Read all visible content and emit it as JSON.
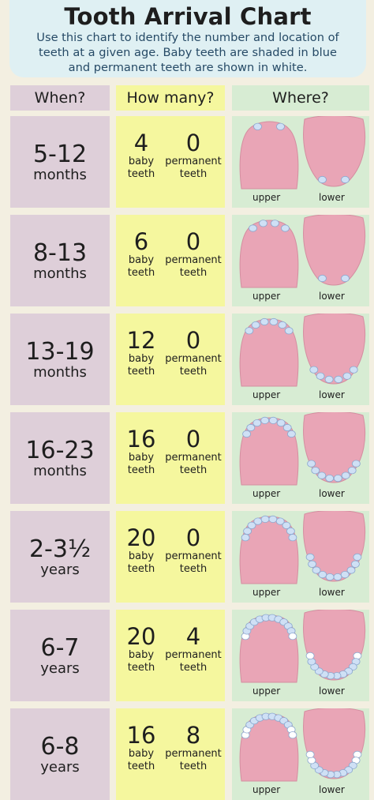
{
  "header": {
    "title": "Tooth Arrival Chart",
    "subtitle_lines": [
      "Use this chart to identify the number and location of",
      "teeth at a given age. Baby teeth are shaded in blue",
      "and permanent teeth are shown in white."
    ]
  },
  "columns": {
    "when": "When?",
    "how_many": "How many?",
    "where": "Where?"
  },
  "baby_label": [
    "baby",
    "teeth"
  ],
  "permanent_label": "permanent teeth",
  "jaw_labels": {
    "upper": "upper",
    "lower": "lower"
  },
  "colors": {
    "when_bg": "#decfd9",
    "howmany_bg": "#f5f79e",
    "where_bg": "#d7ecd3",
    "gum": "#e9a5b6",
    "baby_tooth": "#cfe0f5",
    "permanent_tooth": "#ffffff"
  },
  "rows": [
    {
      "range": "5-12",
      "unit": "months",
      "baby": "4",
      "permanent": "0",
      "upper_baby": 2,
      "upper_perm": 0,
      "lower_baby": 2,
      "lower_perm": 0
    },
    {
      "range": "8-13",
      "unit": "months",
      "baby": "6",
      "permanent": "0",
      "upper_baby": 4,
      "upper_perm": 0,
      "lower_baby": 2,
      "lower_perm": 0
    },
    {
      "range": "13-19",
      "unit": "months",
      "baby": "12",
      "permanent": "0",
      "upper_baby": 6,
      "upper_perm": 0,
      "lower_baby": 6,
      "lower_perm": 0
    },
    {
      "range": "16-23",
      "unit": "months",
      "baby": "16",
      "permanent": "0",
      "upper_baby": 8,
      "upper_perm": 0,
      "lower_baby": 8,
      "lower_perm": 0
    },
    {
      "range": "2-3½",
      "unit": "years",
      "baby": "20",
      "permanent": "0",
      "upper_baby": 10,
      "upper_perm": 0,
      "lower_baby": 10,
      "lower_perm": 0
    },
    {
      "range": "6-7",
      "unit": "years",
      "baby": "20",
      "permanent": "4",
      "upper_baby": 10,
      "upper_perm": 2,
      "lower_baby": 10,
      "lower_perm": 2
    },
    {
      "range": "6-8",
      "unit": "years",
      "baby": "16",
      "permanent": "8",
      "upper_baby": 8,
      "upper_perm": 4,
      "lower_baby": 8,
      "lower_perm": 4
    }
  ]
}
